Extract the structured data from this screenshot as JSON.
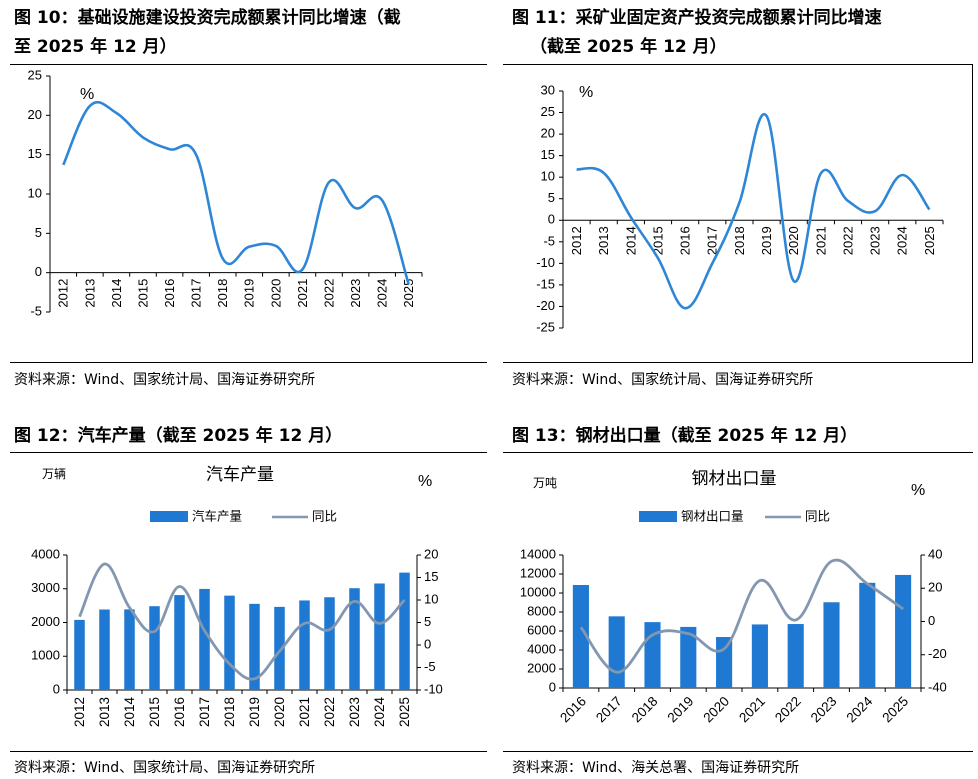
{
  "chart_data": [
    {
      "type": "line",
      "figure_label": "图 10：",
      "title_line1": "基础设施建设投资完成额累计同比增速（截",
      "title_line2": "至 2025 年 12 月）",
      "unit": "%",
      "categories": [
        "2012",
        "2013",
        "2014",
        "2015",
        "2016",
        "2017",
        "2018",
        "2019",
        "2020",
        "2021",
        "2022",
        "2023",
        "2024",
        "2025"
      ],
      "values": [
        13.7,
        21.2,
        20.3,
        17.2,
        15.7,
        15.0,
        1.8,
        3.3,
        3.4,
        0.4,
        11.5,
        8.2,
        9.2,
        -1.5
      ],
      "ylim": [
        -5,
        25
      ],
      "yticks": [
        -5,
        0,
        5,
        10,
        15,
        20,
        25
      ],
      "source": "资料来源：Wind、国家统计局、国海证券研究所"
    },
    {
      "type": "line",
      "figure_label": "图 11：",
      "title_line1": "采矿业固定资产投资完成额累计同比增速",
      "title_line2": "（截至 2025 年 12 月）",
      "unit": "%",
      "categories": [
        "2012",
        "2013",
        "2014",
        "2015",
        "2016",
        "2017",
        "2018",
        "2019",
        "2020",
        "2021",
        "2022",
        "2023",
        "2024",
        "2025"
      ],
      "values": [
        11.8,
        11.0,
        0.7,
        -8.8,
        -20.4,
        -10.0,
        4.1,
        24.2,
        -14.1,
        10.9,
        4.5,
        2.1,
        10.5,
        2.5
      ],
      "ylim": [
        -25,
        30
      ],
      "yticks": [
        -25,
        -20,
        -15,
        -10,
        -5,
        0,
        5,
        10,
        15,
        20,
        25,
        30
      ],
      "source": "资料来源：Wind、国家统计局、国海证券研究所"
    },
    {
      "type": "bar_line",
      "figure_label": "图 12：",
      "title": "汽车产量（截至 2025 年 12 月）",
      "chart_title": "汽车产量",
      "left_unit": "万辆",
      "right_unit": "%",
      "categories": [
        "2012",
        "2013",
        "2014",
        "2015",
        "2016",
        "2017",
        "2018",
        "2019",
        "2020",
        "2021",
        "2022",
        "2023",
        "2024",
        "2025"
      ],
      "series": [
        {
          "name": "汽车产量",
          "type": "bar",
          "axis": "left",
          "values": [
            2077,
            2385,
            2389,
            2483,
            2812,
            2995,
            2796,
            2553,
            2463,
            2653,
            2748,
            3016,
            3156,
            3478
          ]
        },
        {
          "name": "同比",
          "type": "line",
          "axis": "right",
          "values": [
            6.3,
            18.0,
            8.3,
            3.0,
            13.0,
            3.2,
            -4.2,
            -7.5,
            -1.4,
            4.8,
            3.4,
            9.7,
            4.8,
            10.0
          ]
        }
      ],
      "left_ylim": [
        0,
        4000
      ],
      "left_yticks": [
        0,
        1000,
        2000,
        3000,
        4000
      ],
      "right_ylim": [
        -10,
        20
      ],
      "right_yticks": [
        -10,
        -5,
        0,
        5,
        10,
        15,
        20
      ],
      "source": "资料来源：Wind、国家统计局、国海证券研究所"
    },
    {
      "type": "bar_line",
      "figure_label": "图 13：",
      "title": "钢材出口量（截至 2025 年 12 月）",
      "chart_title": "钢材出口量",
      "left_unit": "万吨",
      "right_unit": "%",
      "categories": [
        "2016",
        "2017",
        "2018",
        "2019",
        "2020",
        "2021",
        "2022",
        "2023",
        "2024",
        "2025"
      ],
      "series": [
        {
          "name": "钢材出口量",
          "type": "bar",
          "axis": "left",
          "values": [
            10843,
            7543,
            6934,
            6429,
            5367,
            6690,
            6732,
            9026,
            11072,
            11902
          ]
        },
        {
          "name": "同比",
          "type": "line",
          "axis": "right",
          "values": [
            -3.5,
            -30.5,
            -8.1,
            -7.3,
            -16.5,
            24.6,
            0.9,
            36.2,
            22.7,
            7.5
          ]
        }
      ],
      "left_ylim": [
        0,
        14000
      ],
      "left_yticks": [
        0,
        2000,
        4000,
        6000,
        8000,
        10000,
        12000,
        14000
      ],
      "right_ylim": [
        -40,
        40
      ],
      "right_yticks": [
        -40,
        -20,
        0,
        20,
        40
      ],
      "source": "资料来源：Wind、海关总署、国海证券研究所"
    }
  ],
  "colors": {
    "line_blue": "#2E86D6",
    "bar_blue": "#1F78D1",
    "line_gray": "#8497B0",
    "text": "#000000"
  }
}
